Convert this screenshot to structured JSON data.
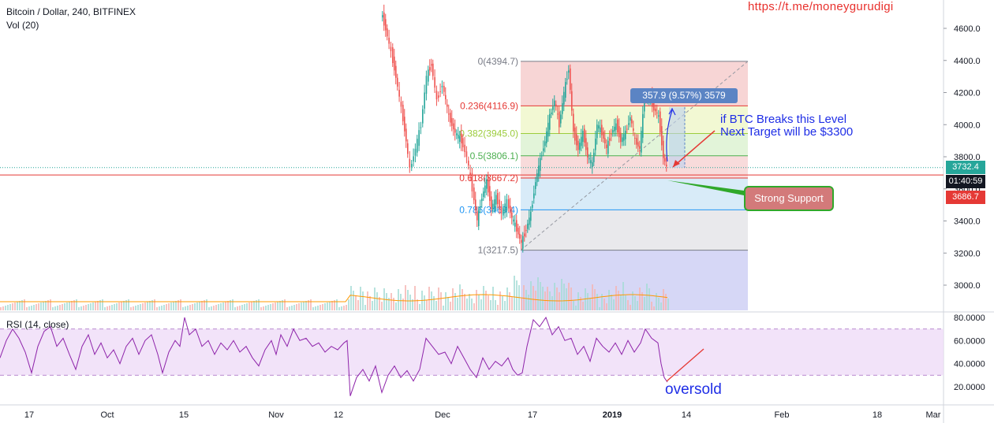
{
  "header": {
    "symbol": "Bitcoin / Dollar, 240, BITFINEX",
    "volume": "Vol (20)",
    "rsi": "RSI (14, close)",
    "link": "https://t.me/moneygurudigi"
  },
  "annotations": {
    "break_line1": "if BTC Breaks this Level",
    "break_line2": "Next Target will be $3300",
    "support": "Strong Support",
    "oversold": "oversold",
    "measure": "357.9 (9.57%) 3579"
  },
  "price_tags": {
    "current": "3732.4",
    "timer": "01:40:59",
    "level": "3686.7"
  },
  "colors": {
    "up": "#26a69a",
    "down": "#ef5350",
    "rsi_line": "#8e24aa",
    "annotation": "#1f2ee6",
    "support_line": "#e53935"
  },
  "chart_data": {
    "type": "candlestick",
    "title": "Bitcoin / Dollar, 240, BITFINEX",
    "price_axis": {
      "ticks": [
        3000,
        3200,
        3400,
        3600,
        3800,
        4000,
        4200,
        4400,
        4600
      ],
      "labels": [
        "3000.0",
        "3200.0",
        "3400.0",
        "3600.0",
        "3800.0",
        "4000.0",
        "4200.0",
        "4400.0",
        "4600.0"
      ],
      "range": [
        2780,
        4780
      ]
    },
    "rsi_axis": {
      "ticks": [
        20,
        40,
        60,
        80
      ],
      "labels": [
        "20.0000",
        "40.0000",
        "60.0000",
        "80.0000"
      ],
      "range": [
        8,
        83
      ],
      "band": [
        30,
        70
      ]
    },
    "time_axis": [
      "17",
      "Oct",
      "Nov",
      "12",
      "15",
      "Dec",
      "17",
      "2019",
      "14",
      "Feb",
      "18",
      "Mar"
    ],
    "fibonacci": [
      {
        "ratio": 0,
        "label": "0(4394.7)",
        "price": 4394.7,
        "color": "#787b86"
      },
      {
        "ratio": 0.236,
        "label": "0.236(4116.9)",
        "price": 4116.9,
        "color": "#e53935"
      },
      {
        "ratio": 0.382,
        "label": "0.382(3945.0)",
        "price": 3945.0,
        "color": "#9ccc3c"
      },
      {
        "ratio": 0.5,
        "label": "0.5(3806.1)",
        "price": 3806.1,
        "color": "#4caf50"
      },
      {
        "ratio": 0.618,
        "label": "0.618(3667.2)",
        "price": 3667.2,
        "color": "#e53935"
      },
      {
        "ratio": 0.786,
        "label": "0.786(3469.4)",
        "price": 3469.4,
        "color": "#2196f3"
      },
      {
        "ratio": 1,
        "label": "1(3217.5)",
        "price": 3217.5,
        "color": "#787b86"
      }
    ],
    "horizontal_lines": [
      {
        "price": 3686.7,
        "color": "#e53935"
      },
      {
        "price": 3732.4,
        "color": "#26a69a"
      }
    ],
    "price_path": [
      [
        484,
        4700
      ],
      [
        490,
        4600
      ],
      [
        497,
        4450
      ],
      [
        503,
        4300
      ],
      [
        510,
        4100
      ],
      [
        516,
        3900
      ],
      [
        521,
        3720
      ],
      [
        528,
        3850
      ],
      [
        535,
        4000
      ],
      [
        542,
        4300
      ],
      [
        548,
        4380
      ],
      [
        555,
        4150
      ],
      [
        562,
        4250
      ],
      [
        570,
        4050
      ],
      [
        578,
        3950
      ],
      [
        586,
        3900
      ],
      [
        593,
        3800
      ],
      [
        600,
        3600
      ],
      [
        606,
        3400
      ],
      [
        612,
        3550
      ],
      [
        618,
        3650
      ],
      [
        624,
        3480
      ],
      [
        630,
        3550
      ],
      [
        637,
        3450
      ],
      [
        644,
        3520
      ],
      [
        650,
        3420
      ],
      [
        656,
        3350
      ],
      [
        662,
        3260
      ],
      [
        668,
        3350
      ],
      [
        674,
        3450
      ],
      [
        680,
        3650
      ],
      [
        686,
        3780
      ],
      [
        692,
        3900
      ],
      [
        698,
        4050
      ],
      [
        704,
        4150
      ],
      [
        710,
        4000
      ],
      [
        716,
        4200
      ],
      [
        722,
        4350
      ],
      [
        728,
        3950
      ],
      [
        734,
        3850
      ],
      [
        740,
        3950
      ],
      [
        746,
        3800
      ],
      [
        752,
        3750
      ],
      [
        758,
        4000
      ],
      [
        764,
        3950
      ],
      [
        770,
        3850
      ],
      [
        776,
        3950
      ],
      [
        782,
        4000
      ],
      [
        788,
        3900
      ],
      [
        794,
        3950
      ],
      [
        800,
        4050
      ],
      [
        806,
        3900
      ],
      [
        812,
        3850
      ],
      [
        818,
        4150
      ],
      [
        824,
        4180
      ],
      [
        830,
        4100
      ],
      [
        836,
        4050
      ],
      [
        842,
        3800
      ],
      [
        846,
        3732
      ]
    ],
    "rsi_path": [
      [
        0,
        45
      ],
      [
        8,
        60
      ],
      [
        16,
        70
      ],
      [
        24,
        62
      ],
      [
        32,
        50
      ],
      [
        40,
        32
      ],
      [
        48,
        55
      ],
      [
        56,
        68
      ],
      [
        64,
        72
      ],
      [
        72,
        55
      ],
      [
        80,
        62
      ],
      [
        88,
        48
      ],
      [
        96,
        35
      ],
      [
        104,
        55
      ],
      [
        112,
        65
      ],
      [
        120,
        48
      ],
      [
        128,
        58
      ],
      [
        136,
        45
      ],
      [
        144,
        52
      ],
      [
        152,
        40
      ],
      [
        160,
        55
      ],
      [
        168,
        62
      ],
      [
        176,
        48
      ],
      [
        184,
        60
      ],
      [
        192,
        65
      ],
      [
        200,
        48
      ],
      [
        206,
        32
      ],
      [
        214,
        50
      ],
      [
        222,
        60
      ],
      [
        228,
        55
      ],
      [
        234,
        80
      ],
      [
        240,
        65
      ],
      [
        248,
        70
      ],
      [
        256,
        55
      ],
      [
        264,
        60
      ],
      [
        272,
        48
      ],
      [
        280,
        58
      ],
      [
        288,
        52
      ],
      [
        296,
        60
      ],
      [
        304,
        50
      ],
      [
        312,
        55
      ],
      [
        320,
        45
      ],
      [
        328,
        38
      ],
      [
        336,
        52
      ],
      [
        344,
        60
      ],
      [
        350,
        48
      ],
      [
        356,
        65
      ],
      [
        364,
        55
      ],
      [
        372,
        70
      ],
      [
        380,
        60
      ],
      [
        388,
        62
      ],
      [
        396,
        55
      ],
      [
        404,
        58
      ],
      [
        412,
        50
      ],
      [
        420,
        55
      ],
      [
        428,
        52
      ],
      [
        436,
        58
      ],
      [
        440,
        60
      ],
      [
        444,
        12
      ],
      [
        452,
        28
      ],
      [
        460,
        35
      ],
      [
        468,
        25
      ],
      [
        476,
        38
      ],
      [
        484,
        15
      ],
      [
        492,
        30
      ],
      [
        500,
        38
      ],
      [
        508,
        28
      ],
      [
        516,
        34
      ],
      [
        524,
        25
      ],
      [
        532,
        35
      ],
      [
        540,
        62
      ],
      [
        548,
        55
      ],
      [
        556,
        48
      ],
      [
        564,
        50
      ],
      [
        572,
        40
      ],
      [
        580,
        55
      ],
      [
        588,
        45
      ],
      [
        596,
        35
      ],
      [
        604,
        28
      ],
      [
        612,
        45
      ],
      [
        620,
        35
      ],
      [
        628,
        42
      ],
      [
        636,
        38
      ],
      [
        644,
        45
      ],
      [
        650,
        35
      ],
      [
        656,
        30
      ],
      [
        662,
        32
      ],
      [
        668,
        55
      ],
      [
        676,
        78
      ],
      [
        684,
        72
      ],
      [
        692,
        80
      ],
      [
        700,
        65
      ],
      [
        708,
        72
      ],
      [
        716,
        60
      ],
      [
        724,
        62
      ],
      [
        732,
        48
      ],
      [
        740,
        55
      ],
      [
        748,
        42
      ],
      [
        756,
        62
      ],
      [
        764,
        55
      ],
      [
        772,
        50
      ],
      [
        780,
        58
      ],
      [
        788,
        48
      ],
      [
        796,
        60
      ],
      [
        804,
        50
      ],
      [
        812,
        58
      ],
      [
        818,
        70
      ],
      [
        826,
        62
      ],
      [
        834,
        58
      ],
      [
        838,
        40
      ],
      [
        842,
        28
      ],
      [
        846,
        24
      ]
    ]
  }
}
